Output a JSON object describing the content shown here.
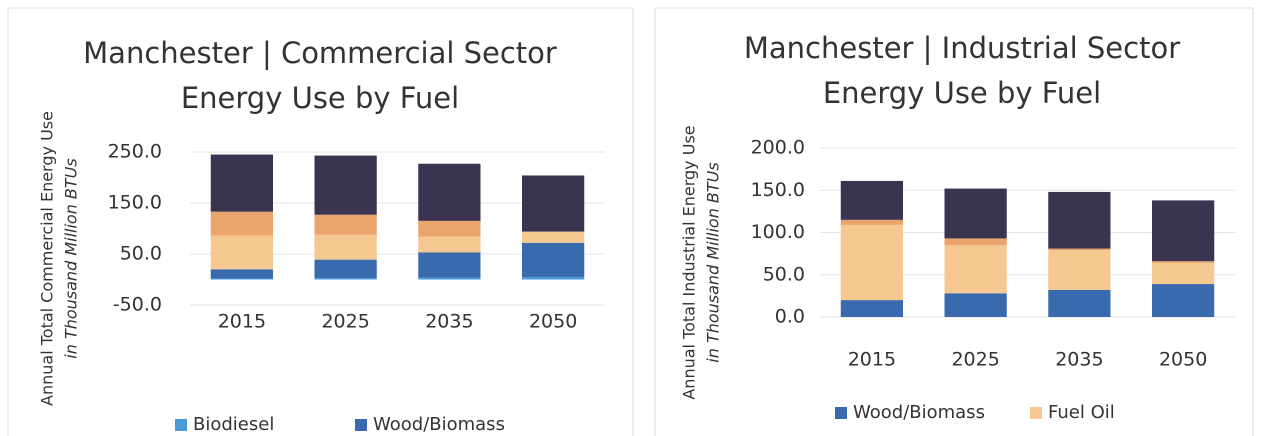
{
  "chart_data": [
    {
      "type": "bar",
      "stacked": true,
      "title_lines": [
        "Manchester | Commercial Sector",
        "Energy Use by Fuel"
      ],
      "y_label_lines": [
        "Annual Total Commercial Energy Use",
        "in Thousand Million BTUs"
      ],
      "categories": [
        "2015",
        "2025",
        "2035",
        "2050"
      ],
      "ylim": [
        -50,
        250
      ],
      "yticks": [
        {
          "value": -50,
          "label": "-50.0"
        },
        {
          "value": 50,
          "label": "50.0"
        },
        {
          "value": 150,
          "label": "150.0"
        },
        {
          "value": 250,
          "label": "250.0"
        }
      ],
      "grid": true,
      "series": [
        {
          "name": "Biodiesel",
          "color": "#4a9ad8",
          "values": [
            2,
            3,
            4,
            5
          ]
        },
        {
          "name": "Wood/Biomass",
          "color": "#3a6aae",
          "values": [
            18,
            36,
            49,
            67
          ]
        },
        {
          "color": "#f4c890",
          "values": [
            66,
            49,
            31,
            22
          ]
        },
        {
          "color": "#e9a56c",
          "values": [
            47,
            39,
            31,
            0
          ]
        },
        {
          "color": "#3b3450",
          "values": [
            112,
            116,
            112,
            110
          ]
        }
      ]
    },
    {
      "type": "bar",
      "stacked": true,
      "title_lines": [
        "Manchester | Industrial Sector",
        "Energy Use by Fuel"
      ],
      "y_label_lines": [
        "Annual Total Industrial Energy Use",
        "in Thousand Million BTUs"
      ],
      "categories": [
        "2015",
        "2025",
        "2035",
        "2050"
      ],
      "ylim": [
        0,
        200
      ],
      "yticks": [
        {
          "value": 0,
          "label": "0.0"
        },
        {
          "value": 50,
          "label": "50.0"
        },
        {
          "value": 100,
          "label": "100.0"
        },
        {
          "value": 150,
          "label": "150.0"
        },
        {
          "value": 200,
          "label": "200.0"
        }
      ],
      "grid": true,
      "series": [
        {
          "name": "Wood/Biomass",
          "color": "#3a6aae",
          "values": [
            20,
            28,
            32,
            39
          ]
        },
        {
          "name": "Fuel Oil",
          "color": "#f4c890",
          "values": [
            89,
            57,
            47,
            25
          ]
        },
        {
          "color": "#e9a56c",
          "values": [
            6,
            8,
            2,
            2
          ]
        },
        {
          "color": "#3b3450",
          "values": [
            46,
            59,
            67,
            72
          ]
        }
      ]
    }
  ]
}
